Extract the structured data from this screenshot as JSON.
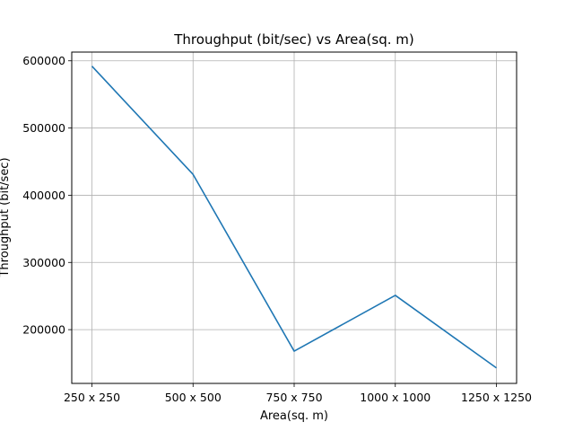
{
  "chart_data": {
    "type": "line",
    "title": "Throughput (bit/sec) vs Area(sq. m)",
    "xlabel": "Area(sq. m)",
    "ylabel": "Throughput (bit/sec)",
    "categories": [
      "250 x 250",
      "500 x 500",
      "750 x 750",
      "1000 x 1000",
      "1250 x 1250"
    ],
    "series": [
      {
        "values": [
          592000,
          431000,
          168000,
          251000,
          143000
        ]
      }
    ],
    "yticks": [
      200000,
      300000,
      400000,
      500000,
      600000
    ],
    "ytick_labels": [
      "200000",
      "300000",
      "400000",
      "500000",
      "600000"
    ],
    "ylim": [
      120000,
      613000
    ],
    "grid": true,
    "line_color": "#1f77b4"
  }
}
